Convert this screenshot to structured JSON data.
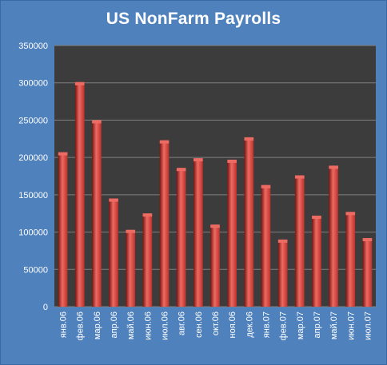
{
  "chart_data": {
    "type": "bar",
    "title": "US NonFarm Payrolls",
    "xlabel": "",
    "ylabel": "",
    "categories": [
      "янв.06",
      "фев.06",
      "мар.06",
      "апр.06",
      "май.06",
      "июн.06",
      "июл.06",
      "авг.06",
      "сен.06",
      "окт.06",
      "ноя.06",
      "дек.06",
      "янв.07",
      "фев.07",
      "мар.07",
      "апр.07",
      "май.07",
      "июн.07",
      "июл.07"
    ],
    "values": [
      207000,
      301000,
      250000,
      145000,
      103000,
      125000,
      223000,
      186000,
      199000,
      110000,
      197000,
      227000,
      163000,
      90000,
      176000,
      122000,
      189000,
      127000,
      92000
    ],
    "ylim": [
      0,
      350000
    ],
    "yticks": [
      0,
      50000,
      100000,
      150000,
      200000,
      250000,
      300000,
      350000
    ],
    "grid": true,
    "legend": "none",
    "colors": {
      "frame_bg": "#4f81bd",
      "plot_bg": "#3c3c3c",
      "bar": "#c0302a",
      "bar_highlight": "#ec6b63",
      "bar_shadow": "#7a1410",
      "gridline": "#7f7f7f",
      "text": "#ffffff"
    }
  }
}
